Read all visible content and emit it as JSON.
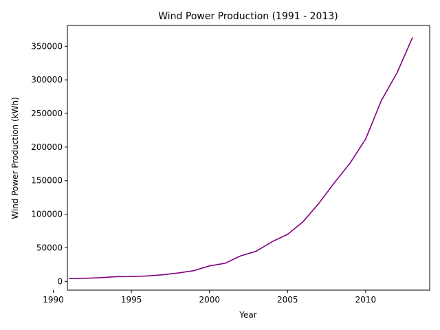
{
  "chart_data": {
    "type": "line",
    "title": "Wind Power Production (1991 - 2013)",
    "xlabel": "Year",
    "ylabel": "Wind Power Production (kWh)",
    "xlim": [
      1990.9,
      2014.1
    ],
    "ylim": [
      -13000,
      381000
    ],
    "xticks": [
      1990,
      1995,
      2000,
      2005,
      2010
    ],
    "yticks": [
      0,
      50000,
      100000,
      150000,
      200000,
      250000,
      300000,
      350000
    ],
    "grid": false,
    "line_color": "#800080",
    "series": [
      {
        "x": [
          1991,
          1992,
          1993,
          1994,
          1995,
          1996,
          1997,
          1998,
          1999,
          2000,
          2001,
          2002,
          2003,
          2004,
          2005,
          2006,
          2007,
          2008,
          2009,
          2010,
          2011,
          2012,
          2013
        ],
        "values": [
          4300,
          4600,
          5500,
          7000,
          7200,
          8000,
          9800,
          12500,
          16000,
          23000,
          27000,
          38000,
          45000,
          59000,
          70000,
          89000,
          116000,
          147000,
          176000,
          212000,
          269000,
          310000,
          363000
        ]
      }
    ]
  }
}
